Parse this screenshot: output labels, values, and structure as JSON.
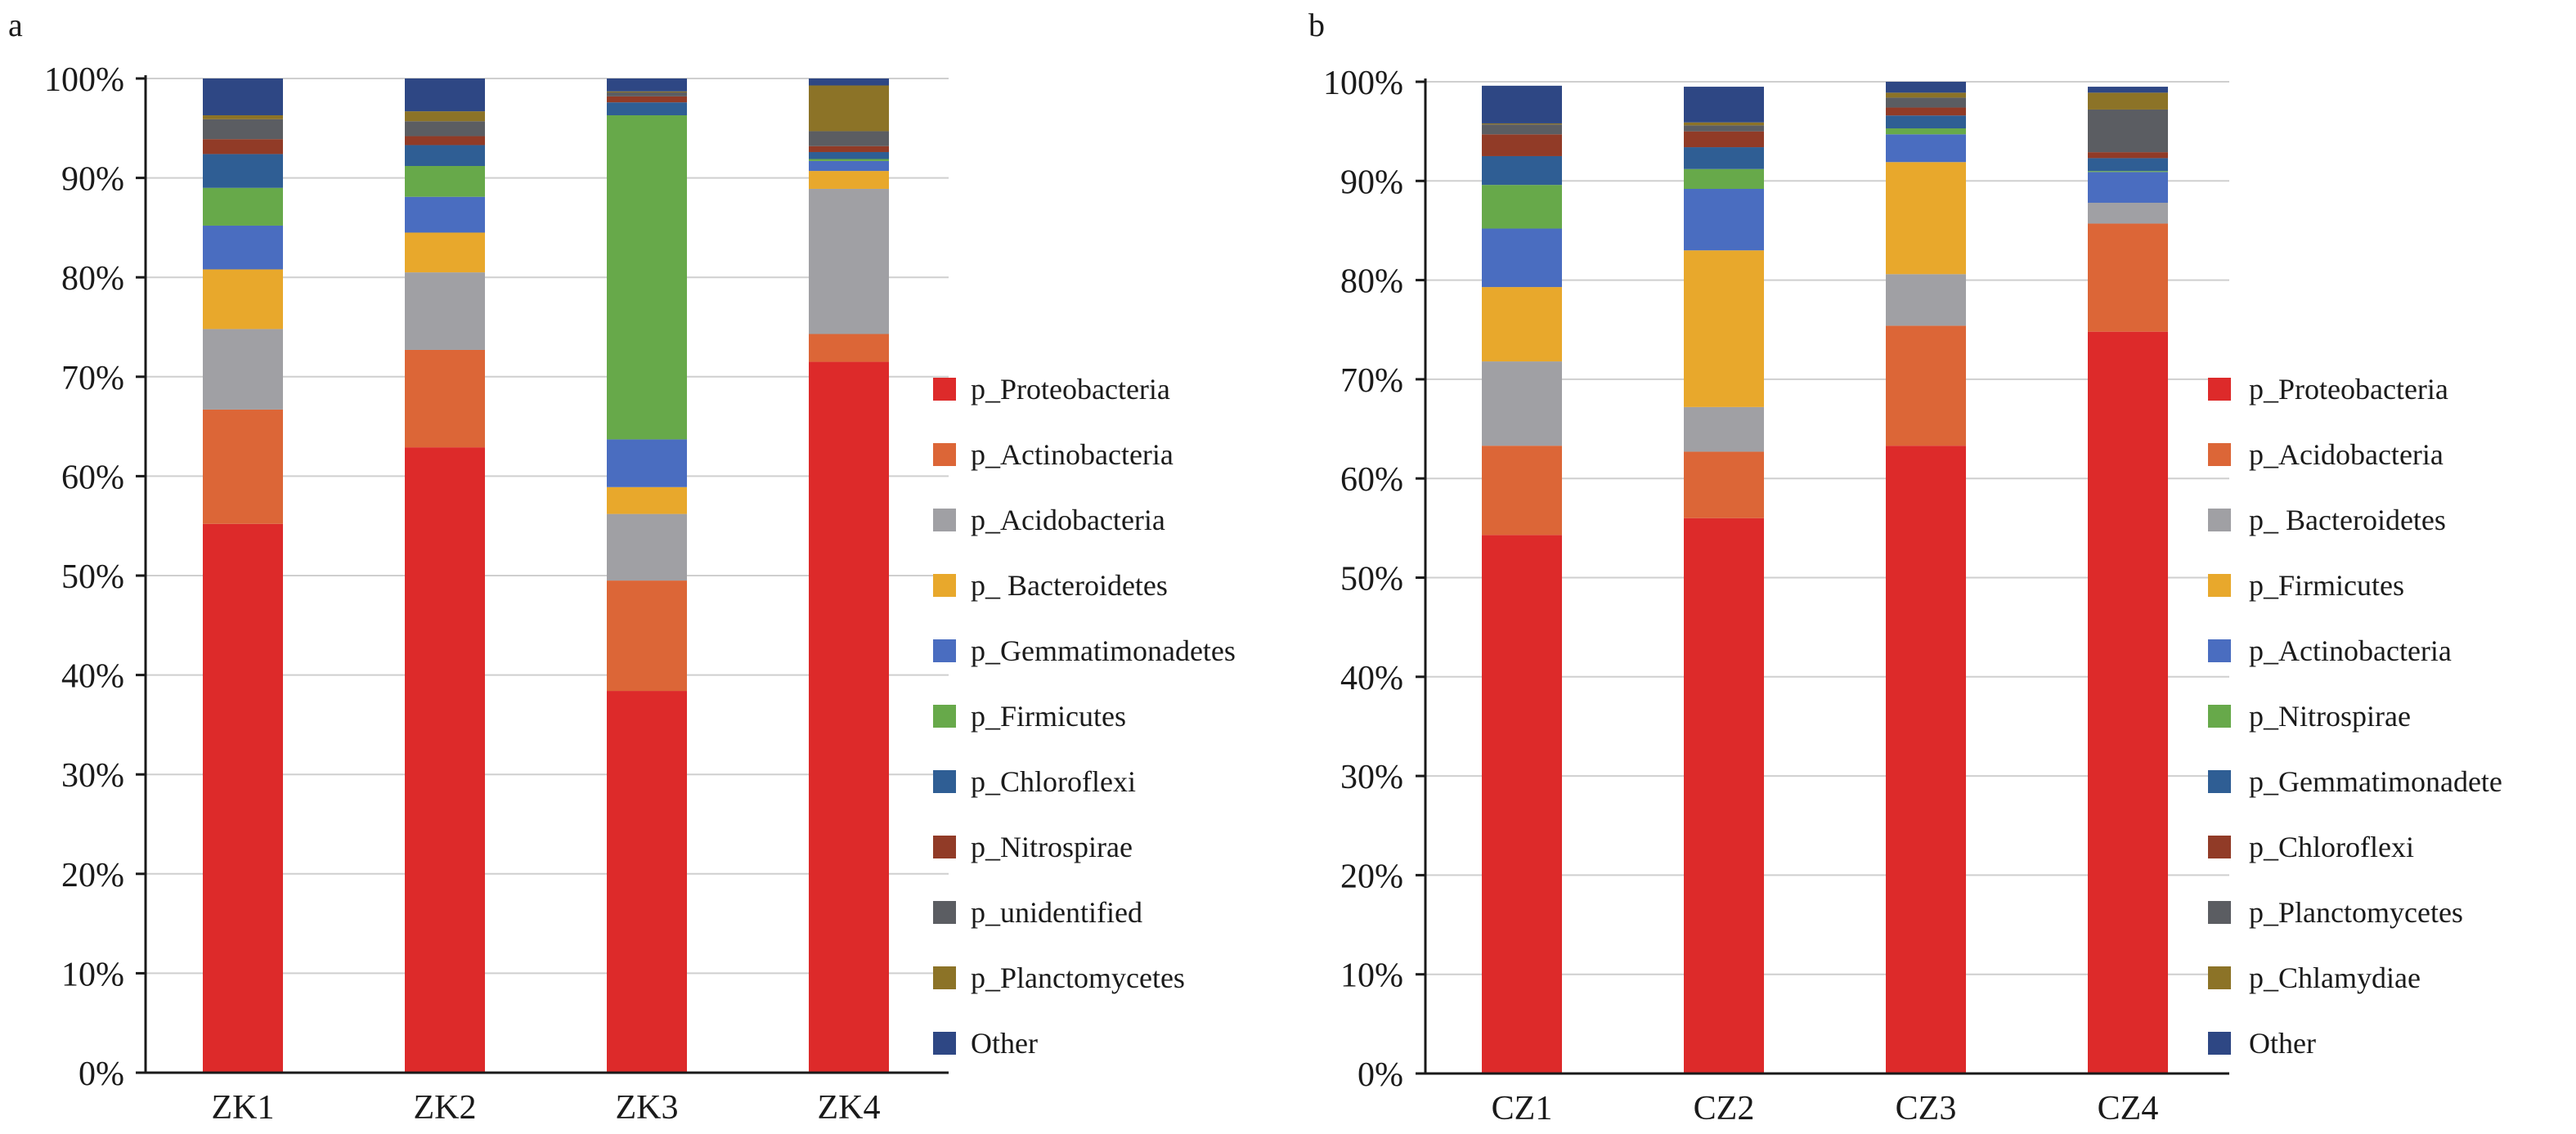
{
  "chart_data": [
    {
      "type": "bar",
      "stacked": true,
      "panel_label": "a",
      "categories": [
        "ZK1",
        "ZK2",
        "ZK3",
        "ZK4"
      ],
      "yticks": [
        "0%",
        "10%",
        "20%",
        "30%",
        "40%",
        "50%",
        "60%",
        "70%",
        "80%",
        "90%",
        "100%"
      ],
      "ylim": [
        0,
        100
      ],
      "grid": true,
      "legend_position": "right",
      "series": [
        {
          "name": "p_Proteobacteria",
          "color": "#dd2a2a",
          "values": [
            55.2,
            62.9,
            38.4,
            71.5
          ]
        },
        {
          "name": "p_Actinobacteria",
          "color": "#dc6637",
          "values": [
            11.5,
            9.8,
            11.1,
            2.8
          ]
        },
        {
          "name": "p_Acidobacteria",
          "color": "#a0a0a4",
          "values": [
            8.1,
            7.8,
            6.7,
            14.6
          ]
        },
        {
          "name": "p_ Bacteroidetes",
          "color": "#e8a82c",
          "values": [
            6.0,
            4.0,
            2.7,
            1.8
          ]
        },
        {
          "name": "p_Gemmatimonadetes",
          "color": "#4a6dc0",
          "values": [
            4.4,
            3.6,
            4.8,
            1.0
          ]
        },
        {
          "name": "p_Firmicutes",
          "color": "#67a94a",
          "values": [
            3.8,
            3.1,
            32.6,
            0.2
          ]
        },
        {
          "name": "p_Chloroflexi",
          "color": "#2f5e94",
          "values": [
            3.4,
            2.1,
            1.3,
            0.7
          ]
        },
        {
          "name": "p_Nitrospirae",
          "color": "#913b27",
          "values": [
            1.5,
            0.9,
            0.6,
            0.6
          ]
        },
        {
          "name": "p_unidentified",
          "color": "#5b5d62",
          "values": [
            2.0,
            1.5,
            0.4,
            1.5
          ]
        },
        {
          "name": "p_Planctomycetes",
          "color": "#8c7327",
          "values": [
            0.4,
            1.0,
            0.1,
            4.6
          ]
        },
        {
          "name": "Other",
          "color": "#2e4784",
          "values": [
            3.7,
            3.3,
            1.3,
            0.7
          ]
        }
      ]
    },
    {
      "type": "bar",
      "stacked": true,
      "panel_label": "b",
      "categories": [
        "CZ1",
        "CZ2",
        "CZ3",
        "CZ4"
      ],
      "yticks": [
        "0%",
        "10%",
        "20%",
        "30%",
        "40%",
        "50%",
        "60%",
        "70%",
        "80%",
        "90%",
        "100%"
      ],
      "ylim": [
        0,
        100
      ],
      "grid": true,
      "legend_position": "right",
      "series": [
        {
          "name": "p_Proteobacteria",
          "color": "#dd2a2a",
          "values": [
            54.3,
            56.0,
            63.3,
            74.8
          ]
        },
        {
          "name": "p_Acidobacteria",
          "color": "#dc6637",
          "values": [
            9.0,
            6.7,
            12.1,
            10.9
          ]
        },
        {
          "name": "p_ Bacteroidetes",
          "color": "#a0a0a4",
          "values": [
            8.5,
            4.5,
            5.2,
            2.1
          ]
        },
        {
          "name": "p_Firmicutes",
          "color": "#e8a82c",
          "values": [
            7.5,
            15.8,
            11.3,
            0
          ]
        },
        {
          "name": "p_Actinobacteria",
          "color": "#4a6dc0",
          "values": [
            5.9,
            6.2,
            2.8,
            3.1
          ]
        },
        {
          "name": "p_Nitrospirae",
          "color": "#67a94a",
          "values": [
            4.4,
            2.0,
            0.6,
            0.1
          ]
        },
        {
          "name": "p_Gemmatimonadete",
          "color": "#2f5e94",
          "values": [
            2.9,
            2.2,
            1.3,
            1.3
          ]
        },
        {
          "name": "p_Chloroflexi",
          "color": "#913b27",
          "values": [
            2.2,
            1.6,
            0.8,
            0.6
          ]
        },
        {
          "name": "p_Planctomycetes",
          "color": "#5b5d62",
          "values": [
            1.0,
            0.6,
            1.0,
            4.3
          ]
        },
        {
          "name": "p_Chlamydiae",
          "color": "#8c7327",
          "values": [
            0.1,
            0.3,
            0.5,
            1.7
          ]
        },
        {
          "name": "Other",
          "color": "#2e4784",
          "values": [
            3.8,
            3.6,
            1.1,
            0.6
          ]
        }
      ]
    }
  ]
}
